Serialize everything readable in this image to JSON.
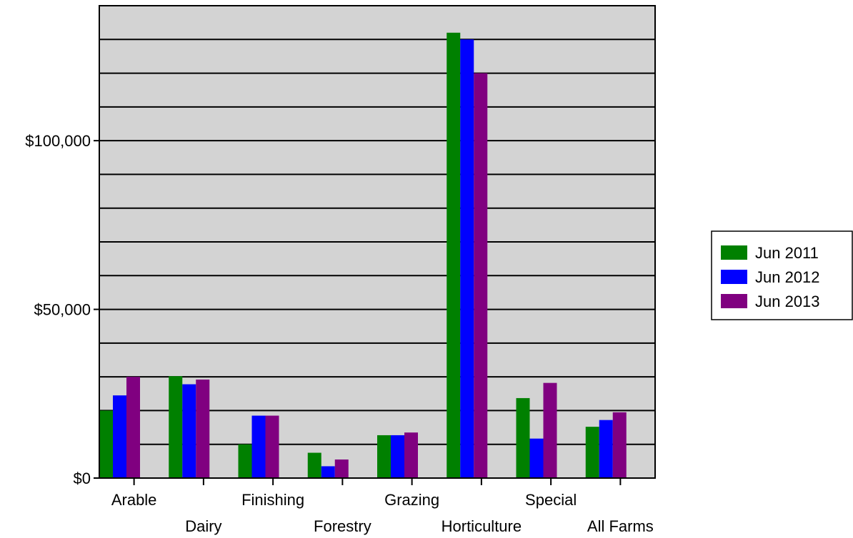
{
  "chart_data": {
    "type": "bar",
    "title": "",
    "xlabel": "",
    "ylabel": "",
    "ylim": [
      0,
      140000
    ],
    "yticks": [
      0,
      50000,
      100000
    ],
    "ytick_labels": [
      "$0",
      "$50,000",
      "$100,000"
    ],
    "grid": "horizontal every 10,000",
    "legend_position": "right",
    "categories": [
      "Arable",
      "Dairy",
      "Finishing",
      "Forestry",
      "Grazing",
      "Horticulture",
      "Special",
      "All Farms"
    ],
    "series": [
      {
        "name": "Jun 2011",
        "color": "#008000",
        "values": [
          20000,
          30200,
          10000,
          7500,
          12700,
          132000,
          23700,
          15200
        ]
      },
      {
        "name": "Jun 2012",
        "color": "#0000ff",
        "values": [
          24500,
          27800,
          18500,
          3500,
          12700,
          130000,
          11700,
          17200
        ]
      },
      {
        "name": "Jun 2013",
        "color": "#800080",
        "values": [
          30000,
          29200,
          18500,
          5500,
          13500,
          120000,
          28200,
          19500
        ]
      }
    ],
    "plot_background": "#d3d3d3"
  }
}
